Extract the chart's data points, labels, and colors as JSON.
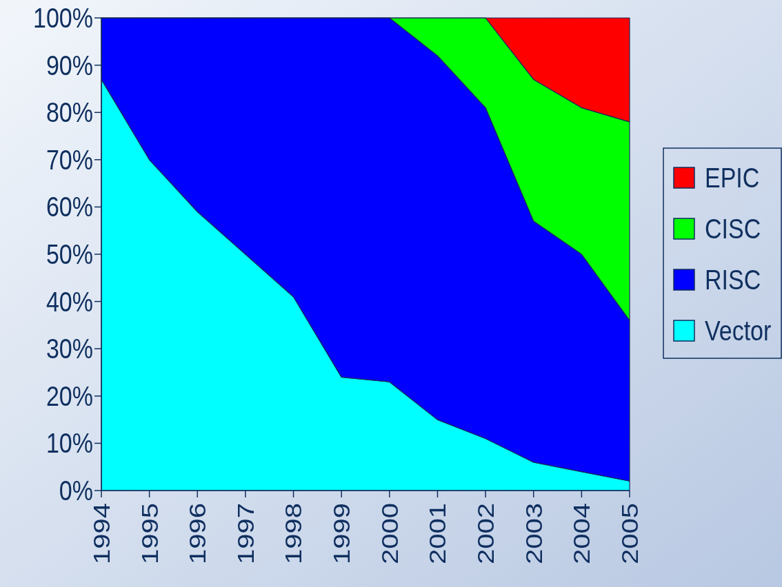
{
  "chart_data": {
    "type": "area",
    "stacked": true,
    "categories": [
      "1994",
      "1995",
      "1996",
      "1997",
      "1998",
      "1999",
      "2000",
      "2001",
      "2002",
      "2003",
      "2004",
      "2005"
    ],
    "series": [
      {
        "name": "Vector",
        "color": "#00ffff",
        "values": [
          87,
          70,
          59,
          50,
          41,
          24,
          23,
          15,
          11,
          6,
          4,
          2
        ]
      },
      {
        "name": "RISC",
        "color": "#0000ff",
        "values": [
          13,
          30,
          41,
          50,
          59,
          76,
          77,
          77,
          70,
          51,
          46,
          34
        ]
      },
      {
        "name": "CISC",
        "color": "#00ff00",
        "values": [
          0,
          0,
          0,
          0,
          0,
          0,
          0,
          8,
          19,
          30,
          31,
          42
        ]
      },
      {
        "name": "EPIC",
        "color": "#ff0000",
        "values": [
          0,
          0,
          0,
          0,
          0,
          0,
          0,
          0,
          0,
          13,
          19,
          22
        ]
      }
    ],
    "ylim": [
      0,
      100
    ],
    "yticks": [
      {
        "value": 0,
        "label": "0%"
      },
      {
        "value": 10,
        "label": "10%"
      },
      {
        "value": 20,
        "label": "20%"
      },
      {
        "value": 30,
        "label": "30%"
      },
      {
        "value": 40,
        "label": "40%"
      },
      {
        "value": 50,
        "label": "50%"
      },
      {
        "value": 60,
        "label": "60%"
      },
      {
        "value": 70,
        "label": "70%"
      },
      {
        "value": 80,
        "label": "80%"
      },
      {
        "value": 90,
        "label": "90%"
      },
      {
        "value": 100,
        "label": "100%"
      }
    ],
    "grid": false,
    "legend": "right"
  }
}
